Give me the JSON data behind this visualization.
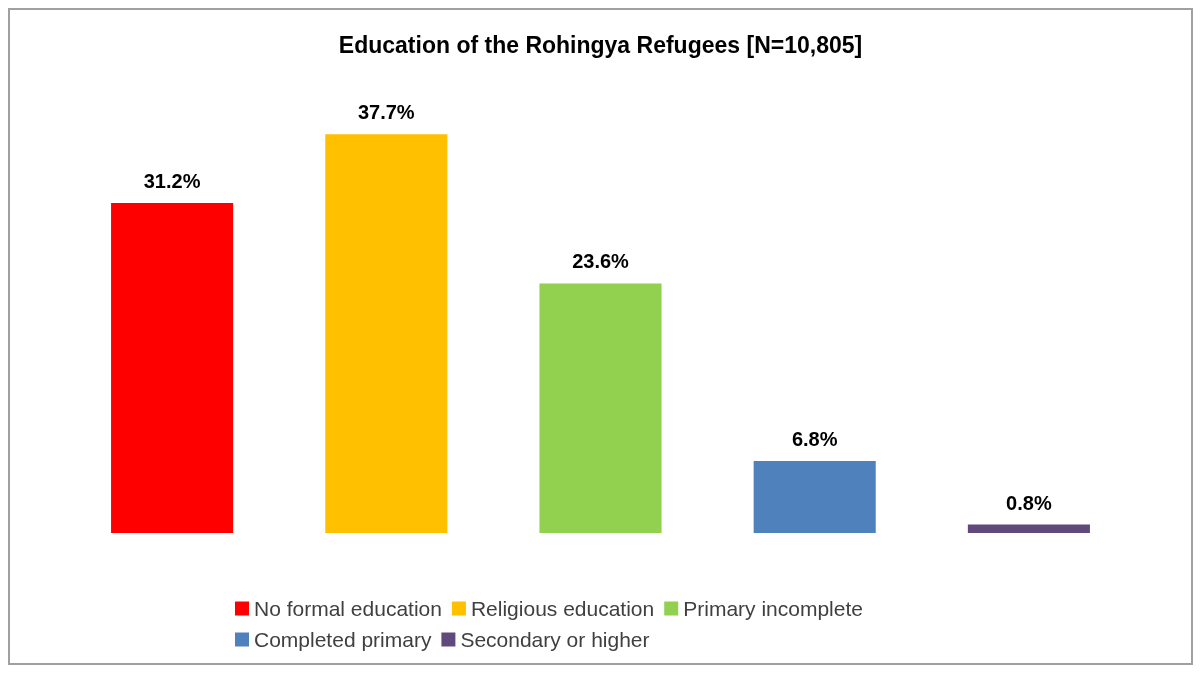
{
  "chart_data": {
    "type": "bar",
    "title": "Education of the Rohingya Refugees [N=10,805]",
    "categories": [
      null,
      null,
      null,
      null,
      null
    ],
    "stacked": true,
    "series": [
      {
        "name": "No formal education",
        "color": "#ff0000",
        "values": [
          31.2,
          null,
          null,
          null,
          null
        ],
        "value_labels": [
          "31.2%",
          null,
          null,
          null,
          null
        ]
      },
      {
        "name": "Religious education",
        "color": "#ffc000",
        "values": [
          null,
          37.7,
          null,
          null,
          null
        ],
        "value_labels": [
          null,
          "37.7%",
          null,
          null,
          null
        ]
      },
      {
        "name": "Primary incomplete",
        "color": "#92d050",
        "values": [
          null,
          null,
          23.6,
          null,
          null
        ],
        "value_labels": [
          null,
          null,
          "23.6%",
          null,
          null
        ]
      },
      {
        "name": "Completed primary",
        "color": "#4f81bd",
        "values": [
          null,
          null,
          null,
          6.8,
          null
        ],
        "value_labels": [
          null,
          null,
          null,
          "6.8%",
          null
        ]
      },
      {
        "name": "Secondary or higher",
        "color": "#604a7b",
        "values": [
          null,
          null,
          null,
          null,
          0.8
        ],
        "value_labels": [
          null,
          null,
          null,
          null,
          "0.8%"
        ]
      }
    ],
    "legend": "bottom"
  }
}
